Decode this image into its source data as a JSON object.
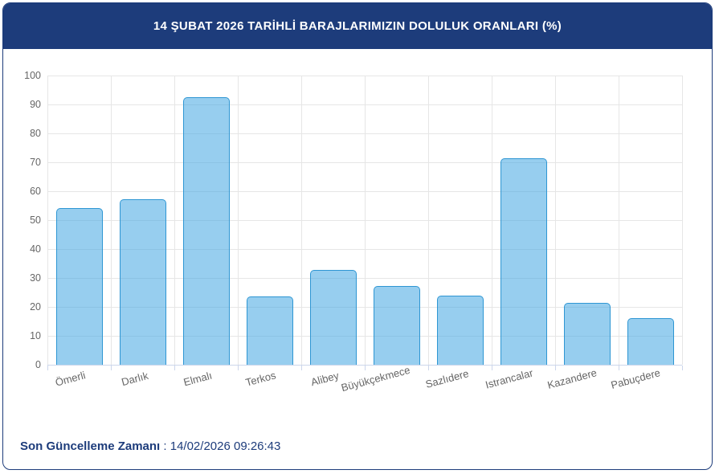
{
  "header": {
    "title": "14 ŞUBAT 2026 TARİHLİ BARAJLARIMIZIN DOLULUK ORANLARI (%)"
  },
  "footer": {
    "label": "Son Güncelleme Zamanı",
    "separator": " : ",
    "value": "14/02/2026 09:26:43"
  },
  "colors": {
    "header_bg": "#1d3c7b",
    "card_border": "#1d3c7b",
    "footer_text": "#1d3c7b",
    "bar_fill": "rgba(66,165,225,0.55)",
    "bar_border": "#2e96d3",
    "grid": "#e6e6e6",
    "axis_line": "#ccd6eb",
    "axis_text": "#666666"
  },
  "chart_data": {
    "type": "bar",
    "title": "14 ŞUBAT 2026 TARİHLİ BARAJLARIMIZIN DOLULUK ORANLARI (%)",
    "categories": [
      "Ömerli",
      "Darlık",
      "Elmalı",
      "Terkos",
      "Alibey",
      "Büyükçekmece",
      "Sazlıdere",
      "Istrancalar",
      "Kazandere",
      "Pabuçdere"
    ],
    "values": [
      54.1,
      57.1,
      92.4,
      23.5,
      32.8,
      27.2,
      23.8,
      71.5,
      21.4,
      16.1
    ],
    "xlabel": "",
    "ylabel": "",
    "ylim": [
      0,
      100
    ],
    "ytick_interval": 10,
    "yticks": [
      0,
      10,
      20,
      30,
      40,
      50,
      60,
      70,
      80,
      90,
      100
    ],
    "grid": true,
    "legend": false,
    "x_label_rotation_deg": -15
  }
}
